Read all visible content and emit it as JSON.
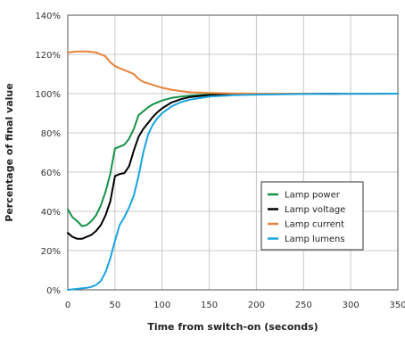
{
  "chart_data": {
    "type": "line",
    "title": "",
    "xlabel": "Time from switch-on (seconds)",
    "ylabel": "Percentage of final value",
    "xlim": [
      0,
      350
    ],
    "ylim": [
      0,
      140
    ],
    "x_ticks": [
      0,
      50,
      100,
      150,
      200,
      250,
      300,
      350
    ],
    "x_tick_labels": [
      "0",
      "50",
      "100",
      "150",
      "200",
      "250",
      "300",
      "350"
    ],
    "y_ticks": [
      0,
      20,
      40,
      60,
      80,
      100,
      120,
      140
    ],
    "y_tick_labels": [
      "0%",
      "20%",
      "40%",
      "60%",
      "80%",
      "100%",
      "120%",
      "140%"
    ],
    "grid": true,
    "legend_position": "lower-right",
    "series": [
      {
        "name": "Lamp power",
        "color": "#16924a",
        "points": [
          [
            0,
            41
          ],
          [
            5,
            37
          ],
          [
            10,
            35
          ],
          [
            15,
            32.5
          ],
          [
            20,
            33
          ],
          [
            25,
            35
          ],
          [
            30,
            38
          ],
          [
            35,
            43
          ],
          [
            40,
            50
          ],
          [
            45,
            59
          ],
          [
            50,
            72
          ],
          [
            55,
            73
          ],
          [
            60,
            74
          ],
          [
            65,
            77
          ],
          [
            70,
            82
          ],
          [
            75,
            89
          ],
          [
            80,
            91
          ],
          [
            85,
            93
          ],
          [
            90,
            94.5
          ],
          [
            95,
            95.5
          ],
          [
            100,
            96.5
          ],
          [
            110,
            97.8
          ],
          [
            120,
            98.5
          ],
          [
            130,
            99
          ],
          [
            150,
            99.6
          ],
          [
            175,
            99.9
          ],
          [
            200,
            100
          ],
          [
            250,
            100
          ],
          [
            300,
            100
          ],
          [
            350,
            100
          ]
        ]
      },
      {
        "name": "Lamp voltage",
        "color": "#000000",
        "points": [
          [
            0,
            29
          ],
          [
            5,
            27
          ],
          [
            10,
            26
          ],
          [
            15,
            26
          ],
          [
            20,
            27
          ],
          [
            25,
            28
          ],
          [
            30,
            30
          ],
          [
            35,
            33
          ],
          [
            40,
            38
          ],
          [
            45,
            45
          ],
          [
            50,
            58
          ],
          [
            55,
            59
          ],
          [
            60,
            59.5
          ],
          [
            65,
            63
          ],
          [
            70,
            71
          ],
          [
            75,
            78
          ],
          [
            80,
            82
          ],
          [
            85,
            85
          ],
          [
            90,
            88
          ],
          [
            95,
            90.5
          ],
          [
            100,
            92.5
          ],
          [
            110,
            95.5
          ],
          [
            120,
            97.2
          ],
          [
            130,
            98.3
          ],
          [
            150,
            99.3
          ],
          [
            175,
            99.8
          ],
          [
            200,
            100
          ],
          [
            250,
            100
          ],
          [
            300,
            100
          ],
          [
            350,
            100
          ]
        ]
      },
      {
        "name": "Lamp current",
        "color": "#e8833a",
        "points": [
          [
            0,
            121
          ],
          [
            10,
            121.5
          ],
          [
            20,
            121.5
          ],
          [
            30,
            121
          ],
          [
            40,
            119
          ],
          [
            45,
            116
          ],
          [
            50,
            114
          ],
          [
            55,
            113
          ],
          [
            60,
            112
          ],
          [
            65,
            111
          ],
          [
            70,
            110
          ],
          [
            75,
            107.5
          ],
          [
            80,
            106
          ],
          [
            90,
            104.5
          ],
          [
            100,
            103
          ],
          [
            110,
            102
          ],
          [
            120,
            101.3
          ],
          [
            130,
            100.7
          ],
          [
            150,
            100.3
          ],
          [
            175,
            100.1
          ],
          [
            200,
            100
          ],
          [
            250,
            100
          ],
          [
            280,
            99.8
          ],
          [
            300,
            100
          ],
          [
            330,
            99.9
          ],
          [
            350,
            100
          ]
        ]
      },
      {
        "name": "Lamp lumens",
        "color": "#1ba3e0",
        "points": [
          [
            0,
            0
          ],
          [
            10,
            0.5
          ],
          [
            20,
            1
          ],
          [
            25,
            1.5
          ],
          [
            30,
            2.5
          ],
          [
            35,
            4.5
          ],
          [
            40,
            9
          ],
          [
            45,
            16
          ],
          [
            50,
            25
          ],
          [
            55,
            33
          ],
          [
            60,
            37
          ],
          [
            65,
            42
          ],
          [
            70,
            48
          ],
          [
            75,
            58
          ],
          [
            80,
            70
          ],
          [
            85,
            79
          ],
          [
            90,
            84
          ],
          [
            95,
            87.5
          ],
          [
            100,
            90
          ],
          [
            110,
            93.5
          ],
          [
            120,
            95.7
          ],
          [
            130,
            97
          ],
          [
            150,
            98.5
          ],
          [
            175,
            99.2
          ],
          [
            200,
            99.5
          ],
          [
            250,
            99.8
          ],
          [
            300,
            99.9
          ],
          [
            350,
            100
          ]
        ]
      }
    ]
  }
}
